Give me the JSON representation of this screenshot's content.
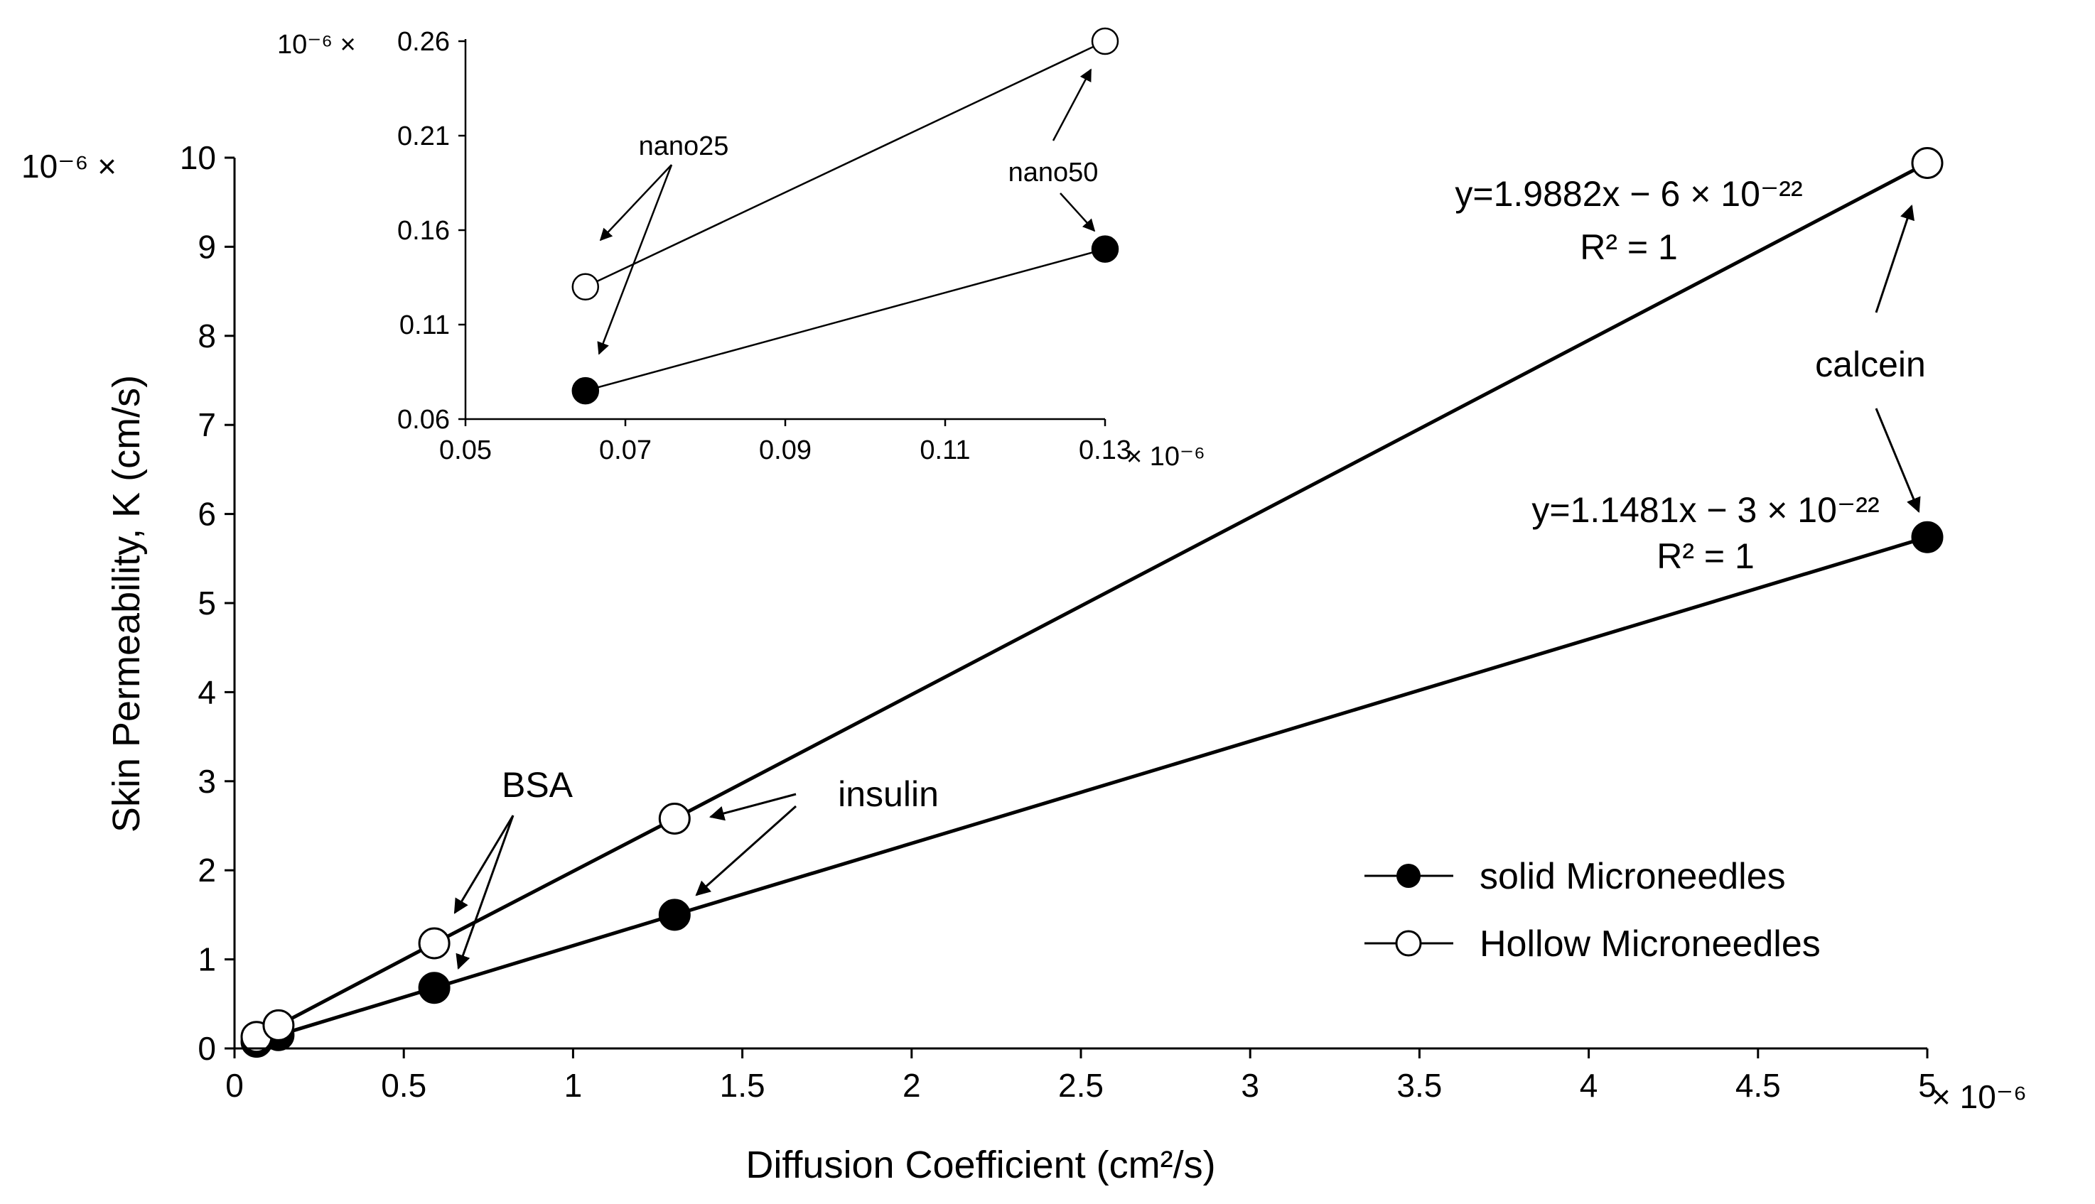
{
  "chart_data": [
    {
      "type": "line",
      "xlabel": "Diffusion Coefficient (cm²/s)",
      "ylabel": "Skin Permeability, K (cm/s)",
      "x_multiplier": "× 10⁻⁶",
      "y_multiplier": "10⁻⁶ ×",
      "xlim": [
        0,
        5
      ],
      "ylim": [
        0,
        10
      ],
      "x_ticks": [
        0,
        0.5,
        1,
        1.5,
        2,
        2.5,
        3,
        3.5,
        4,
        4.5,
        5
      ],
      "x_tick_labels": [
        "0",
        "0.5",
        "1",
        "1.5",
        "2",
        "2.5",
        "3",
        "3.5",
        "4",
        "4.5",
        "5"
      ],
      "y_ticks": [
        0,
        1,
        2,
        3,
        4,
        5,
        6,
        7,
        8,
        9,
        10
      ],
      "y_tick_labels": [
        "0",
        "1",
        "2",
        "3",
        "4",
        "5",
        "6",
        "7",
        "8",
        "9",
        "10"
      ],
      "grid": false,
      "legend_position": "bottom-right",
      "series": [
        {
          "name": "solid Microneedles",
          "marker": "filled-circle",
          "x": [
            0.065,
            0.13,
            0.59,
            1.3,
            5.0
          ],
          "y": [
            0.075,
            0.15,
            0.68,
            1.5,
            5.74
          ]
        },
        {
          "name": "Hollow Microneedles",
          "marker": "open-circle",
          "x": [
            0.065,
            0.13,
            0.59,
            1.3,
            5.0
          ],
          "y": [
            0.13,
            0.26,
            1.18,
            2.58,
            9.94
          ]
        }
      ],
      "annotations": {
        "hollow_fit": "y=1.9882x − 6 × 10⁻²²",
        "hollow_r2": "R² = 1",
        "solid_fit": "y=1.1481x − 3 × 10⁻²²",
        "solid_r2": "R² = 1",
        "calcein": "calcein",
        "insulin": "insulin",
        "bsa": "BSA"
      }
    },
    {
      "type": "line",
      "xlim": [
        0.05,
        0.13
      ],
      "ylim": [
        0.06,
        0.26
      ],
      "x_multiplier": "× 10⁻⁶",
      "y_multiplier": "10⁻⁶ ×",
      "x_ticks": [
        0.05,
        0.07,
        0.09,
        0.11,
        0.13
      ],
      "x_tick_labels": [
        "0.05",
        "0.07",
        "0.09",
        "0.11",
        "0.13"
      ],
      "y_ticks": [
        0.06,
        0.11,
        0.16,
        0.21,
        0.26
      ],
      "y_tick_labels": [
        "0.06",
        "0.11",
        "0.16",
        "0.21",
        "0.26"
      ],
      "grid": false,
      "series": [
        {
          "marker": "filled-circle",
          "x": [
            0.065,
            0.13
          ],
          "y": [
            0.075,
            0.15
          ]
        },
        {
          "marker": "open-circle",
          "x": [
            0.065,
            0.13
          ],
          "y": [
            0.13,
            0.26
          ]
        }
      ],
      "annotations": {
        "nano25": "nano25",
        "nano50": "nano50"
      }
    }
  ]
}
